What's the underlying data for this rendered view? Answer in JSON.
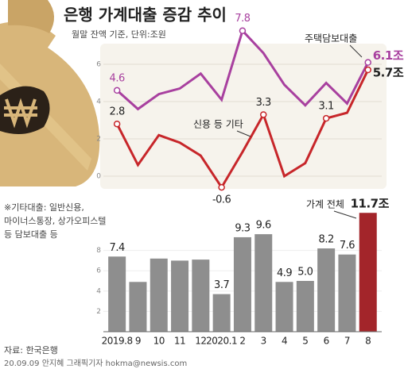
{
  "chart_data": [
    {
      "type": "line",
      "title": "은행 가계대출 증감 추이",
      "subtitle": "월말 잔액 기준, 단위:조원",
      "ylim": [
        -1,
        8.2
      ],
      "yticks": [
        0,
        2,
        4,
        6
      ],
      "grid": true,
      "series": [
        {
          "name": "주택담보대출",
          "color": "#a8409f",
          "values": [
            4.6,
            3.6,
            4.4,
            4.7,
            5.5,
            4.1,
            7.8,
            6.6,
            4.9,
            3.8,
            5.0,
            3.9,
            6.1
          ],
          "value_labels": [
            "4.6",
            null,
            null,
            null,
            null,
            null,
            "7.8",
            null,
            null,
            null,
            null,
            null,
            "6.1조"
          ]
        },
        {
          "name": "신용 등 기타",
          "color": "#c7262a",
          "values": [
            2.8,
            0.6,
            2.2,
            1.8,
            1.1,
            -0.6,
            1.3,
            3.3,
            0.0,
            0.7,
            3.1,
            3.4,
            5.7
          ],
          "value_labels": [
            "2.8",
            null,
            null,
            null,
            null,
            "-0.6",
            null,
            "3.3",
            null,
            null,
            "3.1",
            null,
            "5.7조"
          ]
        }
      ]
    },
    {
      "type": "bar",
      "categories": [
        "2019.8",
        "9",
        "10",
        "11",
        "12",
        "2020.1",
        "2",
        "3",
        "4",
        "5",
        "6",
        "7",
        "8"
      ],
      "ylim": [
        0,
        12
      ],
      "yticks": [
        2,
        4,
        6,
        8
      ],
      "grid": true,
      "series": [
        {
          "name": "가계 전체",
          "color": "#8e8e8e",
          "colors": [
            "#8e8e8e",
            "#8e8e8e",
            "#8e8e8e",
            "#8e8e8e",
            "#8e8e8e",
            "#8e8e8e",
            "#8e8e8e",
            "#8e8e8e",
            "#8e8e8e",
            "#8e8e8e",
            "#8e8e8e",
            "#8e8e8e",
            "#a3252a"
          ],
          "values": [
            7.4,
            4.9,
            7.2,
            7.0,
            7.1,
            3.7,
            9.3,
            9.6,
            4.9,
            5.0,
            8.2,
            7.6,
            11.7
          ],
          "value_labels": [
            "7.4",
            null,
            null,
            null,
            null,
            "3.7",
            "9.3",
            "9.6",
            "4.9",
            "5.0",
            "8.2",
            "7.6",
            "11.7조"
          ]
        }
      ]
    }
  ],
  "notes": [
    "※기타대출: 일반신용,",
    "마이너스통장, 상가오피스텔",
    "등 담보대출 등"
  ],
  "source": "자료: 한국은행",
  "credit": "20.09.09 안지혜 그래픽기자 hokma@newsis.com"
}
